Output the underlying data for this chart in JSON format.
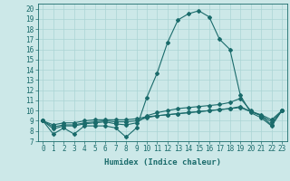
{
  "xlabel": "Humidex (Indice chaleur)",
  "bg_color": "#cce8e8",
  "line_color": "#1a6b6b",
  "grid_color": "#aad4d4",
  "xlim": [
    -0.5,
    23.5
  ],
  "ylim": [
    7,
    20.5
  ],
  "yticks": [
    7,
    8,
    9,
    10,
    11,
    12,
    13,
    14,
    15,
    16,
    17,
    18,
    19,
    20
  ],
  "xticks": [
    0,
    1,
    2,
    3,
    4,
    5,
    6,
    7,
    8,
    9,
    10,
    11,
    12,
    13,
    14,
    15,
    16,
    17,
    18,
    19,
    20,
    21,
    22,
    23
  ],
  "line1": [
    9.0,
    7.7,
    8.3,
    7.7,
    8.5,
    8.5,
    8.5,
    8.3,
    7.4,
    8.3,
    11.3,
    13.7,
    16.7,
    18.9,
    19.5,
    19.8,
    19.2,
    17.0,
    16.0,
    11.5,
    9.8,
    9.3,
    8.5,
    10.0
  ],
  "line2": [
    9.0,
    8.2,
    8.5,
    8.5,
    8.7,
    8.8,
    8.9,
    8.7,
    8.6,
    8.8,
    9.5,
    9.8,
    10.0,
    10.2,
    10.3,
    10.4,
    10.5,
    10.6,
    10.8,
    11.2,
    10.0,
    9.5,
    8.6,
    10.0
  ],
  "line3": [
    9.0,
    8.4,
    8.6,
    8.6,
    8.8,
    8.9,
    9.0,
    8.9,
    8.9,
    9.0,
    9.3,
    9.5,
    9.6,
    9.7,
    9.8,
    9.9,
    10.0,
    10.1,
    10.2,
    10.4,
    9.9,
    9.5,
    8.9,
    10.0
  ],
  "line4": [
    9.0,
    8.6,
    8.8,
    8.8,
    9.0,
    9.1,
    9.1,
    9.1,
    9.1,
    9.2,
    9.4,
    9.5,
    9.6,
    9.7,
    9.8,
    9.9,
    10.0,
    10.1,
    10.2,
    10.3,
    9.9,
    9.6,
    9.1,
    10.0
  ],
  "tick_fontsize": 5.5,
  "label_fontsize": 6.5
}
